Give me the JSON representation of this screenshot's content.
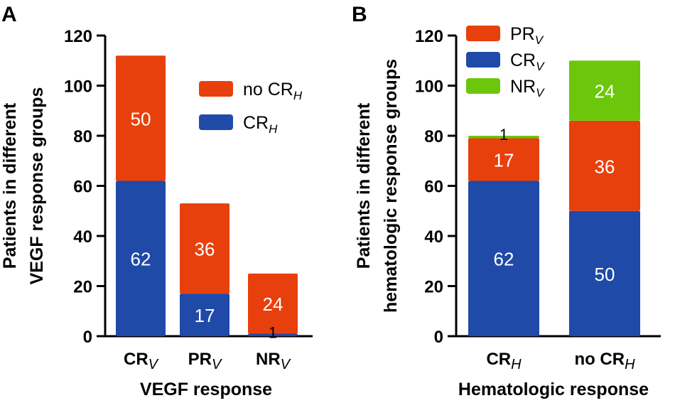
{
  "colors": {
    "orange": "#e8400c",
    "blue": "#1f4aa8",
    "green": "#6cc70c"
  },
  "chart_data": [
    {
      "type": "bar",
      "stacked": true,
      "panel": "A",
      "xlabel": "VEGF response",
      "ylabel_line1": "Patients in different",
      "ylabel_line2": "VEGF response groups",
      "ylim": [
        0,
        120
      ],
      "yticks": [
        0,
        20,
        40,
        60,
        80,
        100,
        120
      ],
      "categories": [
        {
          "main": "CR",
          "sub": "V"
        },
        {
          "main": "PR",
          "sub": "V"
        },
        {
          "main": "NR",
          "sub": "V"
        }
      ],
      "series": [
        {
          "name": "CR",
          "sub": "H",
          "color": "#1f4aa8",
          "values": [
            62,
            17,
            1
          ]
        },
        {
          "name": "no CR",
          "sub": "H",
          "color": "#e8400c",
          "values": [
            50,
            36,
            24
          ]
        }
      ],
      "legend": "top-right"
    },
    {
      "type": "bar",
      "stacked": true,
      "panel": "B",
      "xlabel": "Hematologic response",
      "ylabel_line1": "Patients in different",
      "ylabel_line2": "hematologic response groups",
      "ylim": [
        0,
        120
      ],
      "yticks": [
        0,
        20,
        40,
        60,
        80,
        100,
        120
      ],
      "categories": [
        {
          "main": "CR",
          "sub": "H"
        },
        {
          "main": "no CR",
          "sub": "H"
        }
      ],
      "series": [
        {
          "name": "CR",
          "sub": "V",
          "color": "#1f4aa8",
          "values": [
            62,
            50
          ]
        },
        {
          "name": "PR",
          "sub": "V",
          "color": "#e8400c",
          "values": [
            17,
            36
          ]
        },
        {
          "name": "NR",
          "sub": "V",
          "color": "#6cc70c",
          "values": [
            1,
            24
          ]
        }
      ],
      "legend": "top-left"
    }
  ]
}
